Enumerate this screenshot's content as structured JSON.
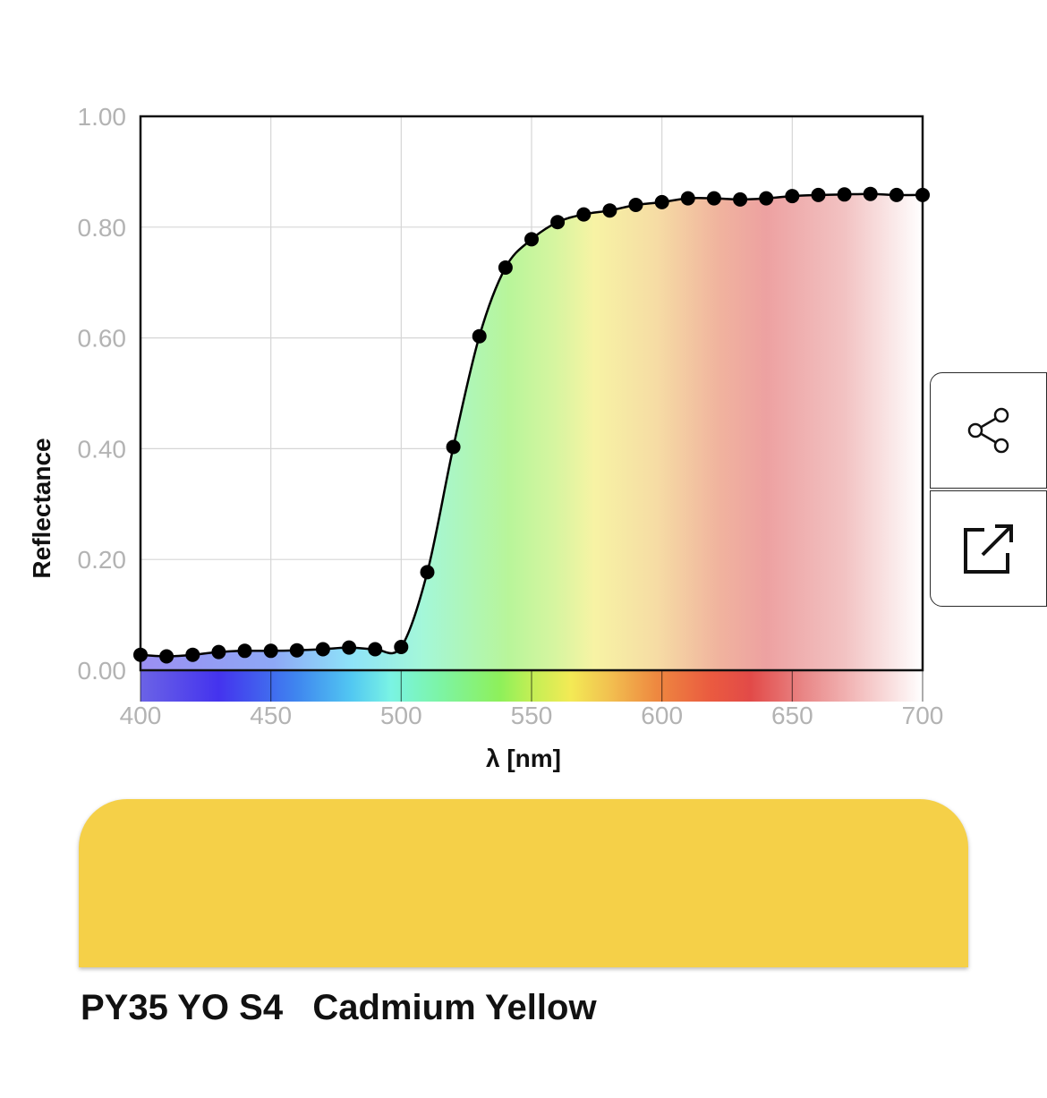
{
  "chart_data": {
    "type": "line",
    "xlabel": "λ [nm]",
    "ylabel": "Reflectance",
    "xlim": [
      400,
      700
    ],
    "ylim": [
      0,
      1
    ],
    "x_ticks": [
      "400",
      "450",
      "500",
      "550",
      "600",
      "650",
      "700"
    ],
    "y_ticks": [
      "0.00",
      "0.20",
      "0.40",
      "0.60",
      "0.80",
      "1.00"
    ],
    "grid": true,
    "series": [
      {
        "x": [
          400,
          410,
          420,
          430,
          440,
          450,
          460,
          470,
          480,
          490,
          500,
          510,
          520,
          530,
          540,
          550,
          560,
          570,
          580,
          590,
          600,
          610,
          620,
          630,
          640,
          650,
          660,
          670,
          680,
          690,
          700
        ],
        "y": [
          0.028,
          0.025,
          0.028,
          0.033,
          0.035,
          0.035,
          0.036,
          0.038,
          0.041,
          0.038,
          0.042,
          0.177,
          0.403,
          0.603,
          0.727,
          0.778,
          0.809,
          0.823,
          0.83,
          0.84,
          0.845,
          0.852,
          0.852,
          0.85,
          0.852,
          0.856,
          0.858,
          0.859,
          0.86,
          0.858,
          0.858
        ]
      }
    ]
  },
  "sample": {
    "swatch_color": "#f5d048",
    "code": "PY35 YO S4",
    "name": "Cadmium Yellow"
  },
  "actions": {
    "share_icon": "share-icon",
    "open_icon": "external-link-icon"
  }
}
